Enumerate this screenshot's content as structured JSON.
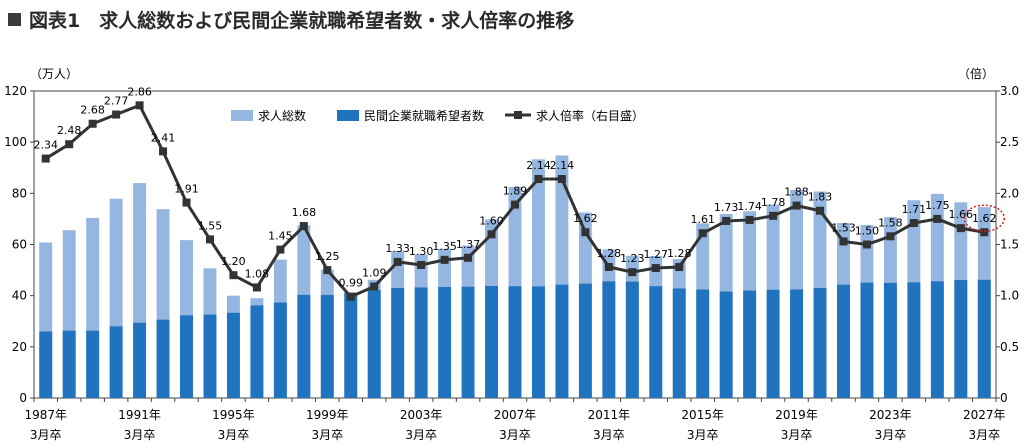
{
  "title": "■ 図表1　求人総数および民間企業就職希望者数・求人倍率の推移",
  "title_text": "図表1　求人総数および民間企業就職希望者数・求人倍率の推移",
  "colors": {
    "total_bar": "#95b6e0",
    "applicant_bar": "#1f73bf",
    "ratio_line": "#333333",
    "highlight_circle": "#e02020",
    "axis": "#444444"
  },
  "chart_data": {
    "type": "bar",
    "left_unit": "（万人）",
    "right_unit": "（倍）",
    "ylim": [
      0,
      120
    ],
    "y2lim": [
      0,
      3.0
    ],
    "yticks": [
      "0",
      "20",
      "40",
      "60",
      "80",
      "100",
      "120"
    ],
    "y2ticks": [
      "0",
      "0.5",
      "1.0",
      "1.5",
      "2.0",
      "2.5",
      "3.0"
    ],
    "years": [
      1987,
      1988,
      1989,
      1990,
      1991,
      1992,
      1993,
      1994,
      1995,
      1996,
      1997,
      1998,
      1999,
      2000,
      2001,
      2002,
      2003,
      2004,
      2005,
      2006,
      2007,
      2008,
      2009,
      2010,
      2011,
      2012,
      2013,
      2014,
      2015,
      2016,
      2017,
      2018,
      2019,
      2020,
      2021,
      2022,
      2023,
      2024,
      2025,
      2026,
      2027
    ],
    "x_tick_labels": [
      {
        "year": "1987年",
        "suffix": "3月卒"
      },
      {
        "year": "1991年",
        "suffix": "3月卒"
      },
      {
        "year": "1995年",
        "suffix": "3月卒"
      },
      {
        "year": "1999年",
        "suffix": "3月卒"
      },
      {
        "year": "2003年",
        "suffix": "3月卒"
      },
      {
        "year": "2007年",
        "suffix": "3月卒"
      },
      {
        "year": "2011年",
        "suffix": "3月卒"
      },
      {
        "year": "2015年",
        "suffix": "3月卒"
      },
      {
        "year": "2019年",
        "suffix": "3月卒"
      },
      {
        "year": "2023年",
        "suffix": "3月卒"
      },
      {
        "year": "2027年",
        "suffix": "3月卒"
      }
    ],
    "series": [
      {
        "name": "求人総数",
        "values": [
          60.8,
          65.6,
          70.4,
          77.9,
          84.0,
          73.8,
          61.7,
          50.7,
          40.0,
          39.0,
          54.1,
          67.5,
          50.2,
          40.8,
          46.2,
          57.3,
          56.1,
          58.3,
          59.6,
          69.8,
          82.5,
          93.3,
          94.8,
          72.5,
          58.1,
          55.6,
          55.5,
          54.3,
          68.3,
          71.9,
          73.0,
          75.6,
          81.3,
          80.7,
          68.4,
          67.6,
          70.7,
          77.3,
          79.8,
          76.5,
          74.6
        ]
      },
      {
        "name": "民間企業就職希望者数",
        "values": [
          26.0,
          26.3,
          26.3,
          28.0,
          29.4,
          30.6,
          32.3,
          32.6,
          33.3,
          36.2,
          37.3,
          40.3,
          40.3,
          41.2,
          42.2,
          43.0,
          43.2,
          43.4,
          43.5,
          43.8,
          43.7,
          43.6,
          44.3,
          44.7,
          45.6,
          45.5,
          43.7,
          42.8,
          42.4,
          41.6,
          42.0,
          42.3,
          42.4,
          43.0,
          44.3,
          45.1,
          45.0,
          45.2,
          45.6,
          46.1,
          46.2
        ]
      },
      {
        "name": "求人倍率（右目盛）",
        "values": [
          2.34,
          2.48,
          2.68,
          2.77,
          2.86,
          2.41,
          1.91,
          1.55,
          1.2,
          1.08,
          1.45,
          1.68,
          1.25,
          0.99,
          1.09,
          1.33,
          1.3,
          1.35,
          1.37,
          1.6,
          1.89,
          2.14,
          2.14,
          1.62,
          1.28,
          1.23,
          1.27,
          1.28,
          1.61,
          1.73,
          1.74,
          1.78,
          1.88,
          1.83,
          1.53,
          1.5,
          1.58,
          1.71,
          1.75,
          1.66,
          1.62
        ]
      }
    ],
    "ratio_labels": [
      "2.34",
      "2.48",
      "2.68",
      "2.77",
      "2.86",
      "2.41",
      "1.91",
      "1.55",
      "1.20",
      "1.08",
      "1.45",
      "1.68",
      "1.25",
      "0.99",
      "1.09",
      "1.33",
      "1.30",
      "1.35",
      "1.37",
      "1.60",
      "1.89",
      "2.14",
      "2.14",
      "1.62",
      "1.28",
      "1.23",
      "1.27",
      "1.28",
      "1.61",
      "1.73",
      "1.74",
      "1.78",
      "1.88",
      "1.83",
      "1.53",
      "1.50",
      "1.58",
      "1.71",
      "1.75",
      "1.66",
      "1.62"
    ],
    "highlight_index": 40,
    "legend_placement": "top-center",
    "grid": false
  }
}
